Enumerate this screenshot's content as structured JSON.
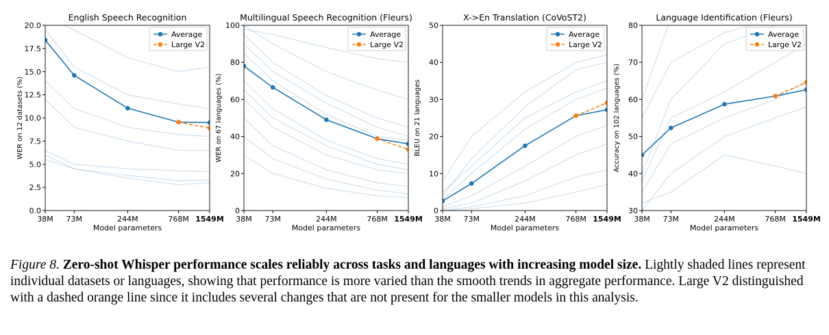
{
  "chart_data": [
    {
      "type": "line",
      "title": "English Speech Recognition",
      "xlabel": "Model parameters",
      "ylabel": "WER on 12 datasets (%)",
      "x": [
        38,
        73,
        244,
        768,
        1549
      ],
      "xscale": "log",
      "xlim": [
        38,
        1549
      ],
      "xticks": [
        {
          "value": 38,
          "label": "38M"
        },
        {
          "value": 73,
          "label": "73M"
        },
        {
          "value": 244,
          "label": "244M"
        },
        {
          "value": 768,
          "label": "768M"
        },
        {
          "value": 1549,
          "label": "1549M"
        }
      ],
      "ylim": [
        0,
        20
      ],
      "yticks": [
        {
          "value": 0,
          "label": "0.0"
        },
        2.5,
        {
          "value": 5,
          "label": "5.0"
        },
        7.5,
        {
          "value": 10,
          "label": "10.0"
        },
        12.5,
        {
          "value": 15,
          "label": "15.0"
        },
        17.5,
        {
          "value": 20,
          "label": "20.0"
        }
      ],
      "legend": "upper right",
      "background_color": "#a9c9e2",
      "background_lines": [
        [
          19.5,
          15.5,
          12.5,
          11.5,
          11
        ],
        [
          14,
          11,
          9,
          8.2,
          8
        ],
        [
          12,
          9,
          7.5,
          6.5,
          6.5
        ],
        [
          6.5,
          5,
          4.5,
          4.3,
          4.2
        ],
        [
          6,
          4.5,
          3.8,
          3.2,
          3.3
        ],
        [
          5.5,
          4.5,
          3.5,
          2.8,
          3
        ],
        [
          21,
          19.5,
          16.5,
          15,
          15.5
        ]
      ],
      "series": [
        {
          "name": "Average",
          "color": "#1f77b4",
          "dashed": false,
          "values": [
            18.4,
            14.6,
            11.05,
            9.55,
            9.5
          ]
        },
        {
          "name": "Large V2",
          "color": "#ff7f0e",
          "dashed": true,
          "values": [
            null,
            null,
            null,
            9.55,
            8.9
          ]
        }
      ]
    },
    {
      "type": "line",
      "title": "Multilingual Speech Recognition (Fleurs)",
      "xlabel": "Model parameters",
      "ylabel": "WER on 67 languages (%)",
      "x": [
        38,
        73,
        244,
        768,
        1549
      ],
      "xscale": "log",
      "xlim": [
        38,
        1549
      ],
      "xticks": [
        {
          "value": 38,
          "label": "38M"
        },
        {
          "value": 73,
          "label": "73M"
        },
        {
          "value": 244,
          "label": "244M"
        },
        {
          "value": 768,
          "label": "768M"
        },
        {
          "value": 1549,
          "label": "1549M"
        }
      ],
      "ylim": [
        0,
        100
      ],
      "yticks": [
        0,
        20,
        40,
        60,
        80,
        100
      ],
      "legend": "upper right",
      "background_color": "#a9c9e2",
      "background_lines": [
        [
          100,
          90,
          75,
          65,
          60
        ],
        [
          95,
          80,
          62,
          50,
          45
        ],
        [
          85,
          70,
          52,
          40,
          38
        ],
        [
          70,
          55,
          38,
          28,
          25
        ],
        [
          60,
          45,
          30,
          22,
          20
        ],
        [
          50,
          35,
          22,
          15,
          13
        ],
        [
          40,
          28,
          17,
          11,
          9
        ],
        [
          30,
          20,
          12,
          8,
          7
        ],
        [
          98,
          95,
          88,
          82,
          80
        ],
        [
          90,
          75,
          58,
          45,
          40
        ],
        [
          65,
          50,
          35,
          25,
          22
        ]
      ],
      "series": [
        {
          "name": "Average",
          "color": "#1f77b4",
          "dashed": false,
          "values": [
            78,
            66.5,
            49,
            38.8,
            36
          ]
        },
        {
          "name": "Large V2",
          "color": "#ff7f0e",
          "dashed": true,
          "values": [
            null,
            null,
            null,
            38.8,
            33
          ]
        }
      ]
    },
    {
      "type": "line",
      "title": "X->En Translation (CoVoST2)",
      "xlabel": "Model parameters",
      "ylabel": "BLEU on 21 languages",
      "x": [
        38,
        73,
        244,
        768,
        1549
      ],
      "xscale": "log",
      "xlim": [
        38,
        1549
      ],
      "xticks": [
        {
          "value": 38,
          "label": "38M"
        },
        {
          "value": 73,
          "label": "73M"
        },
        {
          "value": 244,
          "label": "244M"
        },
        {
          "value": 768,
          "label": "768M"
        },
        {
          "value": 1549,
          "label": "1549M"
        }
      ],
      "ylim": [
        0,
        50
      ],
      "yticks": [
        0,
        10,
        20,
        30,
        40,
        50
      ],
      "legend": "upper right",
      "background_color": "#a9c9e2",
      "background_lines": [
        [
          5,
          12,
          25,
          32,
          35
        ],
        [
          3,
          10,
          22,
          30,
          33
        ],
        [
          1,
          4,
          12,
          20,
          23
        ],
        [
          0.5,
          2,
          8,
          15,
          18
        ],
        [
          0.2,
          1,
          4,
          9,
          11
        ],
        [
          0,
          0.5,
          2,
          5,
          7
        ],
        [
          8,
          20,
          32,
          40,
          42
        ],
        [
          4,
          14,
          28,
          38,
          40
        ]
      ],
      "series": [
        {
          "name": "Average",
          "color": "#1f77b4",
          "dashed": false,
          "values": [
            2.6,
            7.3,
            17.5,
            25.6,
            27.2
          ]
        },
        {
          "name": "Large V2",
          "color": "#ff7f0e",
          "dashed": true,
          "values": [
            null,
            null,
            null,
            25.6,
            29.1
          ]
        }
      ]
    },
    {
      "type": "line",
      "title": "Language Identification (Fleurs)",
      "xlabel": "Model parameters",
      "ylabel": "Accuracy on 102 languages (%)",
      "x": [
        38,
        73,
        244,
        768,
        1549
      ],
      "xscale": "log",
      "xlim": [
        38,
        1549
      ],
      "xticks": [
        {
          "value": 38,
          "label": "38M"
        },
        {
          "value": 73,
          "label": "73M"
        },
        {
          "value": 244,
          "label": "244M"
        },
        {
          "value": 768,
          "label": "768M"
        },
        {
          "value": 1549,
          "label": "1549M"
        }
      ],
      "ylim": [
        30,
        80
      ],
      "yticks": [
        30,
        40,
        50,
        60,
        70,
        80
      ],
      "legend": "upper right",
      "background_color": "#a9c9e2",
      "background_lines": [
        [
          55,
          70,
          78,
          82,
          84
        ],
        [
          40,
          60,
          75,
          80,
          82
        ],
        [
          35,
          48,
          55,
          60,
          65
        ],
        [
          30,
          40,
          50,
          55,
          58
        ],
        [
          32,
          35,
          45,
          42,
          40
        ],
        [
          38,
          55,
          62,
          70,
          75
        ],
        [
          60,
          82,
          85,
          88,
          90
        ]
      ],
      "series": [
        {
          "name": "Average",
          "color": "#1f77b4",
          "dashed": false,
          "values": [
            45,
            52.3,
            58.7,
            60.9,
            62.6
          ]
        },
        {
          "name": "Large V2",
          "color": "#ff7f0e",
          "dashed": true,
          "values": [
            null,
            null,
            null,
            60.9,
            64.6
          ]
        }
      ]
    }
  ],
  "caption": {
    "label": "Figure 8.",
    "title": "Zero-shot Whisper performance scales reliably across tasks and languages with increasing model size.",
    "text": "Lightly shaded lines represent individual datasets or languages, showing that performance is more varied than the smooth trends in aggregate performance. Large V2 distinguished with a dashed orange line since it includes several changes that are not present for the smaller models in this analysis."
  }
}
